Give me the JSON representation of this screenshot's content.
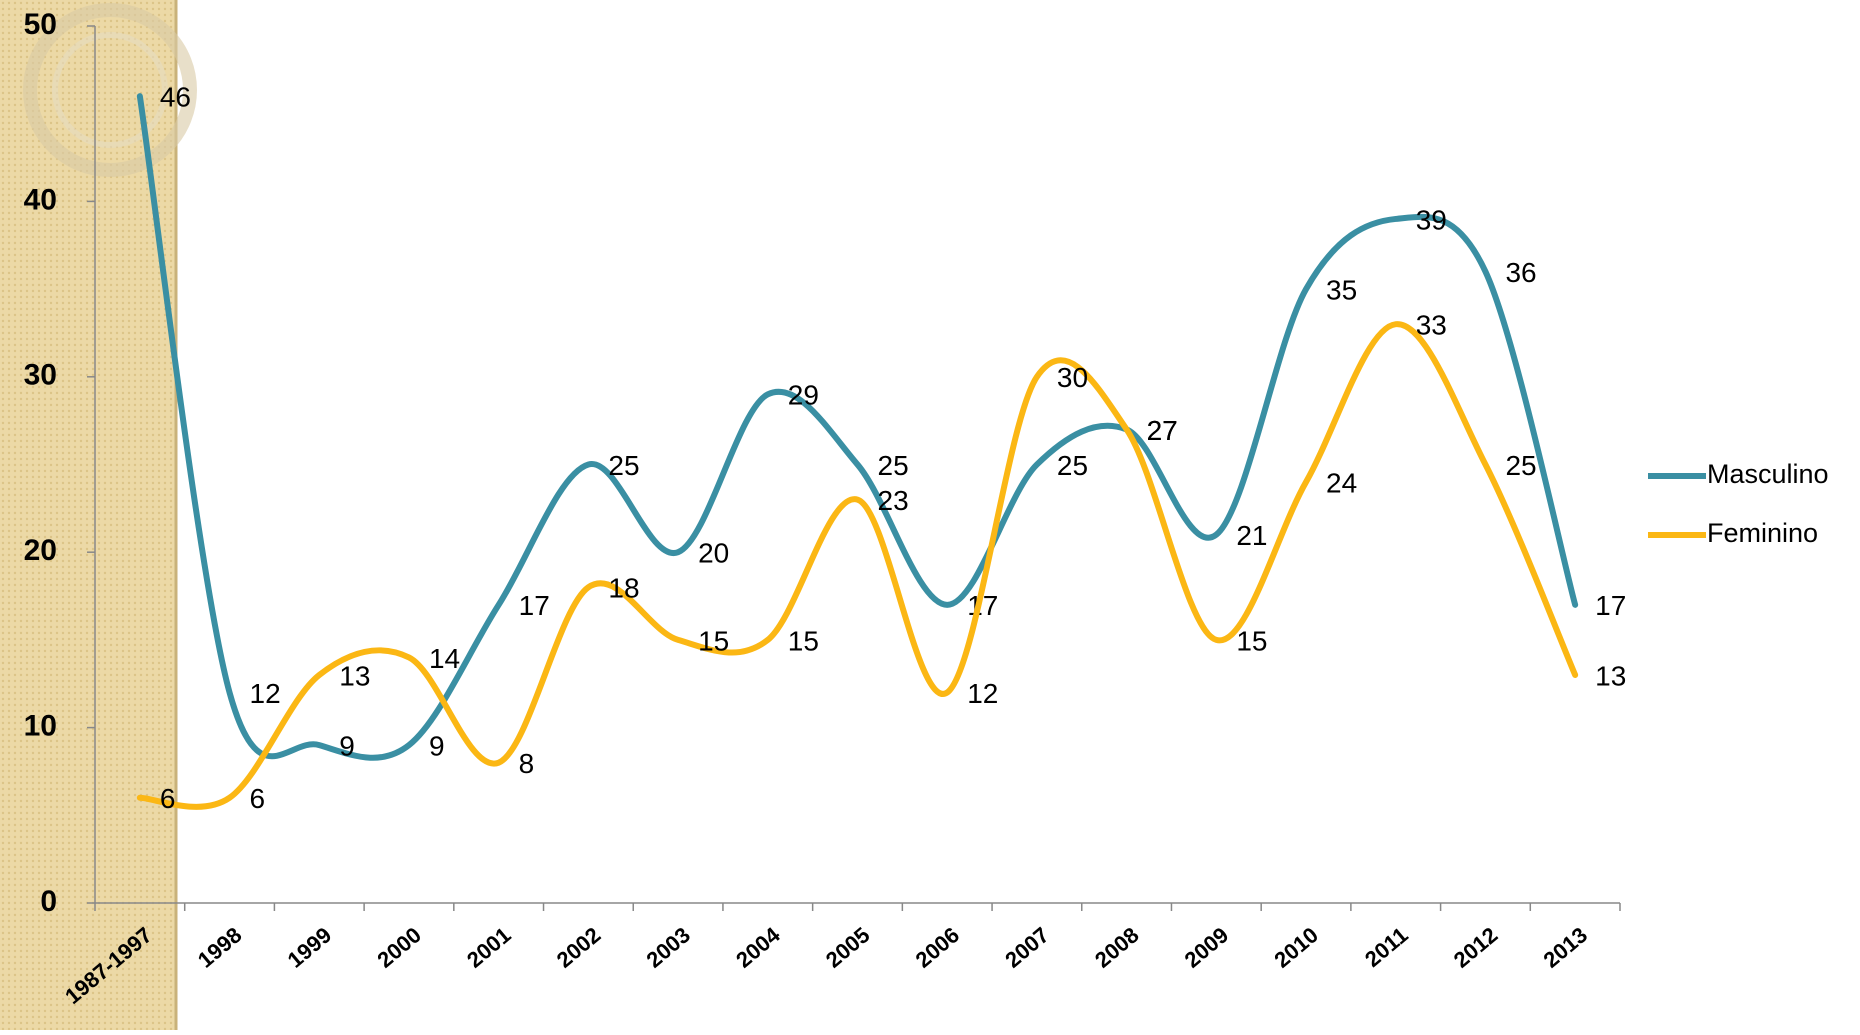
{
  "chart_data": {
    "type": "line",
    "categories": [
      "1987-1997",
      "1998",
      "1999",
      "2000",
      "2001",
      "2002",
      "2003",
      "2004",
      "2005",
      "2006",
      "2007",
      "2008",
      "2009",
      "2010",
      "2011",
      "2012",
      "2013"
    ],
    "series": [
      {
        "name": "Masculino",
        "color": "#3a8fa3",
        "values": [
          46,
          12,
          9,
          9,
          17,
          25,
          20,
          29,
          25,
          17,
          25,
          27,
          21,
          35,
          39,
          36,
          17
        ]
      },
      {
        "name": "Feminino",
        "color": "#fbb714",
        "values": [
          6,
          6,
          13,
          14,
          8,
          18,
          15,
          15,
          23,
          12,
          30,
          27,
          15,
          24,
          33,
          25,
          13
        ]
      }
    ],
    "ylim": [
      0,
      50
    ],
    "yticks": [
      0,
      10,
      20,
      30,
      40,
      50
    ],
    "smooth": true,
    "legend": "right"
  }
}
